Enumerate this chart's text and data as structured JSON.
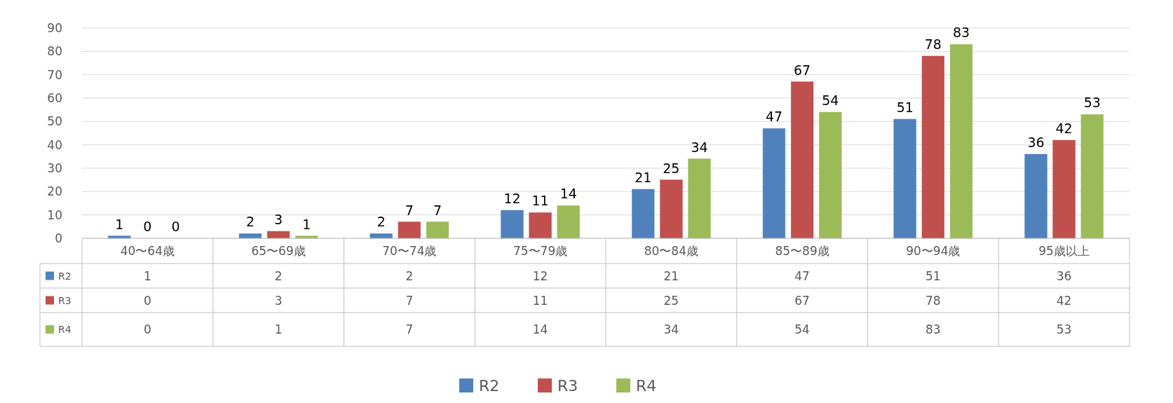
{
  "chart_data": {
    "type": "bar",
    "categories": [
      "40〜64歳",
      "65〜69歳",
      "70〜74歳",
      "75〜79歳",
      "80〜84歳",
      "85〜89歳",
      "90〜94歳",
      "95歳以上"
    ],
    "series": [
      {
        "name": "R2",
        "color": "#4f81bd",
        "values": [
          1,
          2,
          2,
          12,
          21,
          47,
          51,
          36
        ]
      },
      {
        "name": "R3",
        "color": "#c0504d",
        "values": [
          0,
          3,
          7,
          11,
          25,
          67,
          78,
          42
        ]
      },
      {
        "name": "R4",
        "color": "#9bbb59",
        "values": [
          0,
          1,
          7,
          14,
          34,
          54,
          83,
          53
        ]
      }
    ],
    "annotations": [
      "1",
      "2",
      "2",
      "12",
      "21",
      "47",
      "51",
      "36",
      "0",
      "3",
      "7",
      "11",
      "25",
      "67",
      "78",
      "42",
      "0",
      "1",
      "7",
      "14",
      "34",
      "54",
      "83",
      "53"
    ],
    "ylim": [
      0,
      90
    ],
    "yticks": [
      0,
      10,
      20,
      30,
      40,
      50,
      60,
      70,
      80,
      90
    ],
    "grid": "y",
    "data_labels": true,
    "legend": "bottom"
  }
}
